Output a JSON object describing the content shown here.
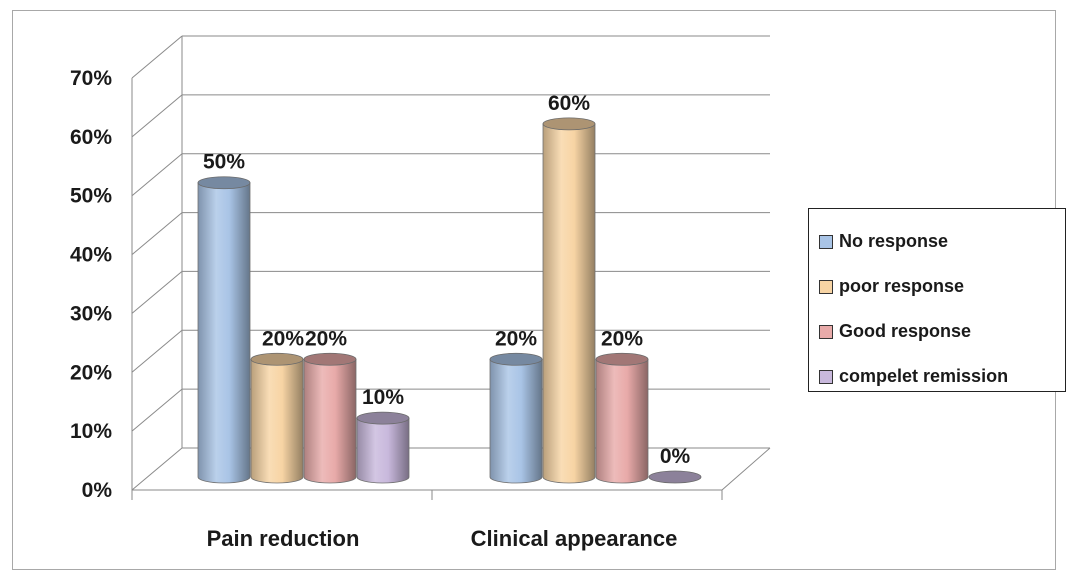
{
  "chart_data": {
    "type": "bar",
    "categories": [
      "Pain reduction",
      "Clinical appearance"
    ],
    "series": [
      {
        "name": "No response",
        "values": [
          50,
          20
        ],
        "labels": [
          "50%",
          "20%"
        ],
        "color": "#a9c4e6"
      },
      {
        "name": "poor response",
        "values": [
          20,
          60
        ],
        "labels": [
          "20%",
          "60%"
        ],
        "color": "#f7d4a4"
      },
      {
        "name": "Good response",
        "values": [
          20,
          20
        ],
        "labels": [
          "20%",
          "20%"
        ],
        "color": "#e8aaa9"
      },
      {
        "name": "compelet remission",
        "values": [
          10,
          0
        ],
        "labels": [
          "10%",
          "0%"
        ],
        "color": "#c8b8dc"
      }
    ],
    "yticks": [
      "0%",
      "10%",
      "20%",
      "30%",
      "40%",
      "50%",
      "60%",
      "70%"
    ],
    "ylim": [
      0,
      70
    ],
    "grid": true,
    "legend_position": "right",
    "style": "3d-cylinder"
  }
}
